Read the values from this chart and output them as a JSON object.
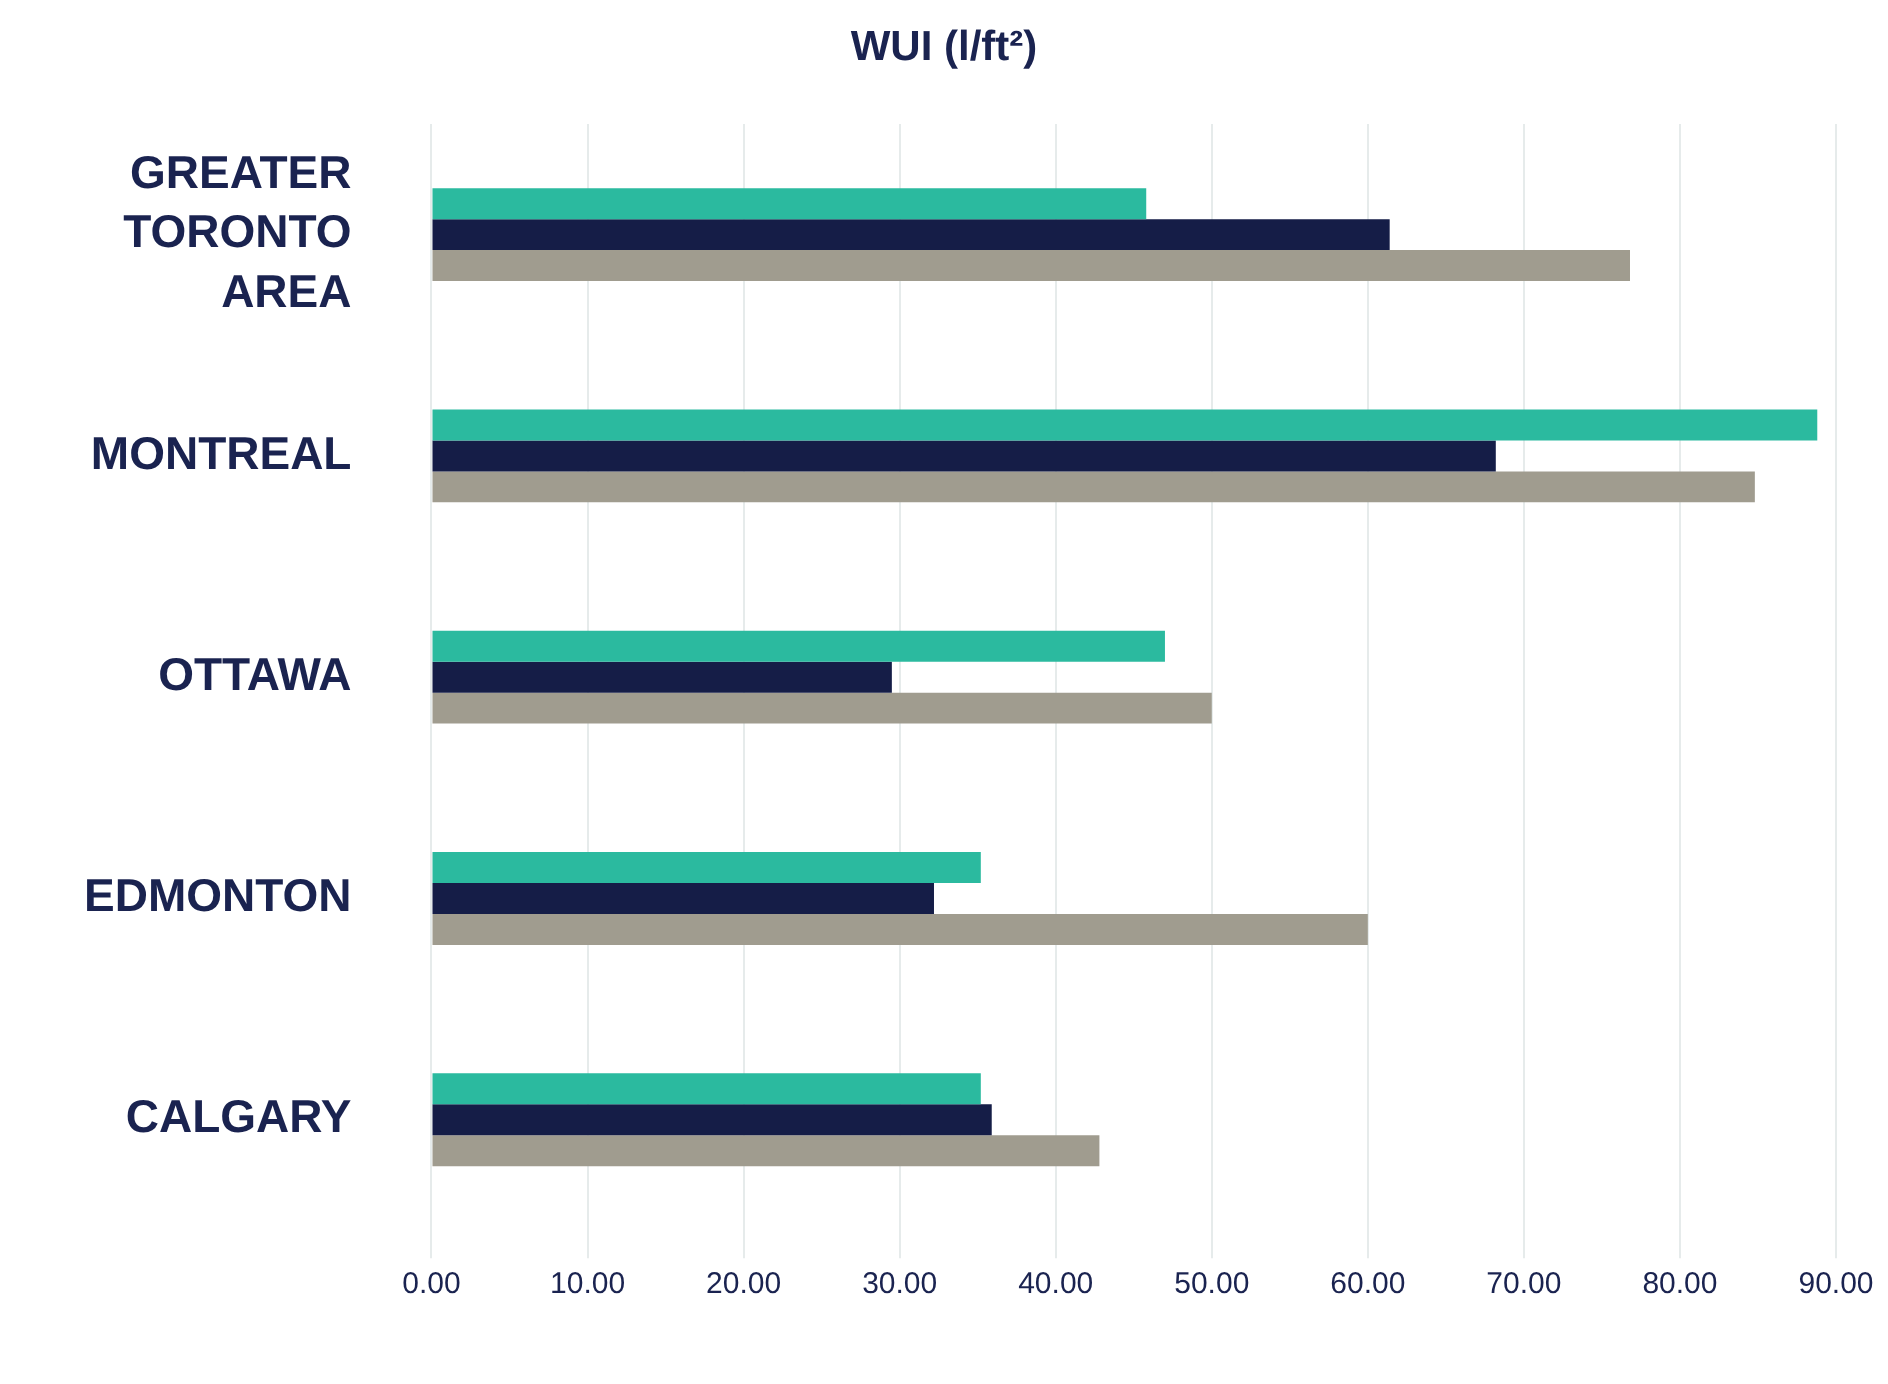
{
  "chart_data": {
    "type": "bar",
    "orientation": "horizontal",
    "title": "WUI (l/ft²)",
    "categories": [
      "GREATER TORONTO AREA",
      "MONTREAL",
      "OTTAWA",
      "EDMONTON",
      "CALGARY"
    ],
    "series": [
      {
        "color": "#2bba9f",
        "values": [
          45.8,
          88.8,
          47.0,
          35.2,
          35.2
        ]
      },
      {
        "color": "#151d47",
        "values": [
          61.4,
          68.2,
          29.5,
          32.2,
          35.9
        ]
      },
      {
        "color": "#a09c8f",
        "values": [
          76.8,
          84.8,
          50.0,
          60.0,
          42.8
        ]
      }
    ],
    "xlim": [
      0,
      90
    ],
    "xticks": [
      {
        "value": 0,
        "label": "0.00"
      },
      {
        "value": 10,
        "label": "10.00"
      },
      {
        "value": 20,
        "label": "20.00"
      },
      {
        "value": 30,
        "label": "30.00"
      },
      {
        "value": 40,
        "label": "40.00"
      },
      {
        "value": 50,
        "label": "50.00"
      },
      {
        "value": 60,
        "label": "60.00"
      },
      {
        "value": 70,
        "label": "70.00"
      },
      {
        "value": 80,
        "label": "80.00"
      },
      {
        "value": 90,
        "label": "90.00"
      }
    ],
    "grid": "x",
    "legend": false
  }
}
